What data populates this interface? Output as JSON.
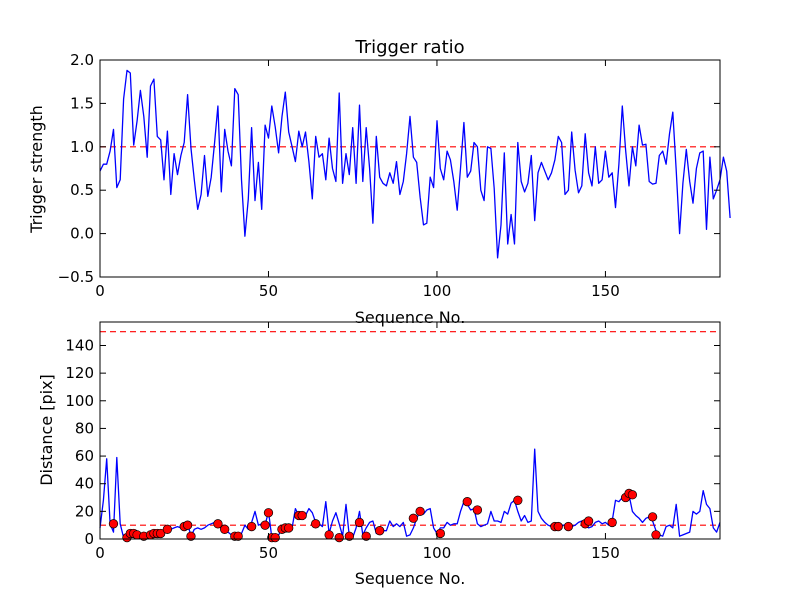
{
  "chart_data": [
    {
      "type": "line",
      "title": "Trigger ratio",
      "xlabel": "Sequence No.",
      "ylabel": "Trigger strength",
      "xlim": [
        0,
        184
      ],
      "ylim": [
        -0.5,
        2.0
      ],
      "xticks": [
        0,
        50,
        100,
        150
      ],
      "yticks": [
        -0.5,
        0.0,
        0.5,
        1.0,
        1.5,
        2.0
      ],
      "reference_line": {
        "y": 1.0,
        "color": "#ff0000",
        "style": "dashed"
      },
      "series": [
        {
          "color": "#0000ff",
          "x_start": 0,
          "values": [
            0.72,
            0.8,
            0.8,
            0.95,
            1.2,
            0.53,
            0.62,
            1.55,
            1.88,
            1.85,
            1.02,
            1.3,
            1.65,
            1.35,
            0.88,
            1.7,
            1.78,
            1.12,
            1.08,
            0.62,
            1.18,
            0.45,
            0.92,
            0.68,
            0.9,
            1.05,
            1.6,
            0.98,
            0.62,
            0.28,
            0.45,
            0.9,
            0.43,
            0.65,
            1.05,
            1.47,
            0.48,
            1.2,
            0.95,
            0.78,
            1.67,
            1.6,
            0.62,
            -0.03,
            0.4,
            1.22,
            0.38,
            0.82,
            0.28,
            1.25,
            1.1,
            1.47,
            1.23,
            0.93,
            1.35,
            1.63,
            1.17,
            1.0,
            0.83,
            1.18,
            1.0,
            1.17,
            0.83,
            0.4,
            1.12,
            0.88,
            0.92,
            0.62,
            1.1,
            0.75,
            0.6,
            1.62,
            0.58,
            0.92,
            0.68,
            1.22,
            0.58,
            1.48,
            0.6,
            1.22,
            0.75,
            0.12,
            1.12,
            0.65,
            0.58,
            0.55,
            0.7,
            0.58,
            0.83,
            0.45,
            0.6,
            0.92,
            1.35,
            0.88,
            0.82,
            0.42,
            0.1,
            0.12,
            0.65,
            0.53,
            1.3,
            0.75,
            0.62,
            0.95,
            0.85,
            0.6,
            0.27,
            0.75,
            1.28,
            0.65,
            0.72,
            1.05,
            1.0,
            0.5,
            0.38,
            1.0,
            0.98,
            0.52,
            -0.28,
            0.1,
            0.93,
            -0.12,
            0.22,
            -0.12,
            1.05,
            0.6,
            0.48,
            0.58,
            0.9,
            0.15,
            0.7,
            0.82,
            0.72,
            0.62,
            0.7,
            0.85,
            1.12,
            1.05,
            0.45,
            0.5,
            1.17,
            0.73,
            0.47,
            0.55,
            1.15,
            0.7,
            0.55,
            1.0,
            0.58,
            0.62,
            0.95,
            0.65,
            0.7,
            0.3,
            0.8,
            1.47,
            0.95,
            0.55,
            1.0,
            0.78,
            1.25,
            1.02,
            1.03,
            0.6,
            0.57,
            0.58,
            0.9,
            0.95,
            0.8,
            1.15,
            1.4,
            0.73,
            0.0,
            0.58,
            0.97,
            0.6,
            0.35,
            0.75,
            0.93,
            0.95,
            0.05,
            0.88,
            0.4,
            0.5,
            0.62,
            0.88,
            0.72,
            0.18
          ]
        }
      ]
    },
    {
      "type": "line",
      "title": "",
      "xlabel": "Sequence No.",
      "ylabel": "Distance [pix]",
      "xlim": [
        0,
        184
      ],
      "ylim": [
        0,
        157
      ],
      "xticks": [
        0,
        50,
        100,
        150
      ],
      "yticks": [
        0,
        20,
        40,
        60,
        80,
        100,
        120,
        140
      ],
      "reference_lines": [
        {
          "y": 150,
          "color": "#ff0000",
          "style": "dashed"
        },
        {
          "y": 10,
          "color": "#ff0000",
          "style": "dashed"
        }
      ],
      "series": [
        {
          "color": "#0000ff",
          "x_start": 0,
          "values": [
            8,
            28,
            58,
            11,
            5,
            59,
            11,
            1,
            4,
            4,
            4,
            3,
            3,
            2,
            3,
            4,
            5,
            5,
            4,
            5,
            7,
            7,
            8,
            9,
            8,
            10,
            11,
            2,
            7,
            8,
            7,
            8,
            10,
            11,
            12,
            11,
            7,
            10,
            5,
            3,
            2,
            3,
            4,
            10,
            7,
            12,
            20,
            10,
            11,
            10,
            20,
            1,
            3,
            3,
            7,
            10,
            8,
            8,
            22,
            17,
            17,
            17,
            22,
            19,
            12,
            11,
            9,
            27,
            4,
            13,
            19,
            11,
            2,
            25,
            2,
            1,
            8,
            20,
            3,
            8,
            12,
            13,
            4,
            7,
            6,
            6,
            13,
            9,
            11,
            9,
            12,
            2,
            3,
            8,
            15,
            20,
            18,
            21,
            22,
            8,
            4,
            8,
            8,
            12,
            10,
            11,
            11,
            20,
            27,
            25,
            21,
            22,
            11,
            9,
            10,
            11,
            20,
            13,
            13,
            12,
            20,
            18,
            26,
            28,
            20,
            13,
            17,
            12,
            13,
            65,
            20,
            15,
            12,
            10,
            9,
            9,
            8,
            10,
            10,
            10,
            9,
            10,
            12,
            13,
            10,
            8,
            9,
            12,
            13,
            11,
            12,
            10,
            13,
            28,
            27,
            30,
            33,
            32,
            20,
            17,
            15,
            12,
            15,
            16,
            13,
            6,
            3,
            2,
            9,
            10,
            8,
            25,
            2,
            3,
            4,
            5,
            20,
            18,
            20,
            35,
            25,
            22,
            8,
            5,
            12
          ]
        }
      ],
      "markers": {
        "color": "#ff0000",
        "points": [
          [
            4,
            11
          ],
          [
            8,
            1
          ],
          [
            9,
            4
          ],
          [
            10,
            4
          ],
          [
            11,
            3
          ],
          [
            13,
            2
          ],
          [
            15,
            3
          ],
          [
            16,
            4
          ],
          [
            17,
            4
          ],
          [
            18,
            4
          ],
          [
            20,
            7
          ],
          [
            25,
            9
          ],
          [
            26,
            10
          ],
          [
            27,
            2
          ],
          [
            35,
            11
          ],
          [
            37,
            7
          ],
          [
            40,
            2
          ],
          [
            41,
            2
          ],
          [
            45,
            9
          ],
          [
            49,
            10
          ],
          [
            50,
            19
          ],
          [
            51,
            1
          ],
          [
            52,
            1
          ],
          [
            54,
            7
          ],
          [
            55,
            8
          ],
          [
            56,
            8
          ],
          [
            59,
            17
          ],
          [
            60,
            17
          ],
          [
            64,
            11
          ],
          [
            68,
            3
          ],
          [
            71,
            1
          ],
          [
            74,
            2
          ],
          [
            77,
            12
          ],
          [
            79,
            2
          ],
          [
            83,
            6
          ],
          [
            93,
            15
          ],
          [
            95,
            20
          ],
          [
            101,
            4
          ],
          [
            109,
            27
          ],
          [
            112,
            21
          ],
          [
            124,
            28
          ],
          [
            135,
            9
          ],
          [
            136,
            9
          ],
          [
            139,
            9
          ],
          [
            144,
            11
          ],
          [
            145,
            13
          ],
          [
            152,
            12
          ],
          [
            156,
            30
          ],
          [
            157,
            33
          ],
          [
            158,
            32
          ],
          [
            164,
            16
          ],
          [
            165,
            3
          ]
        ]
      }
    }
  ]
}
